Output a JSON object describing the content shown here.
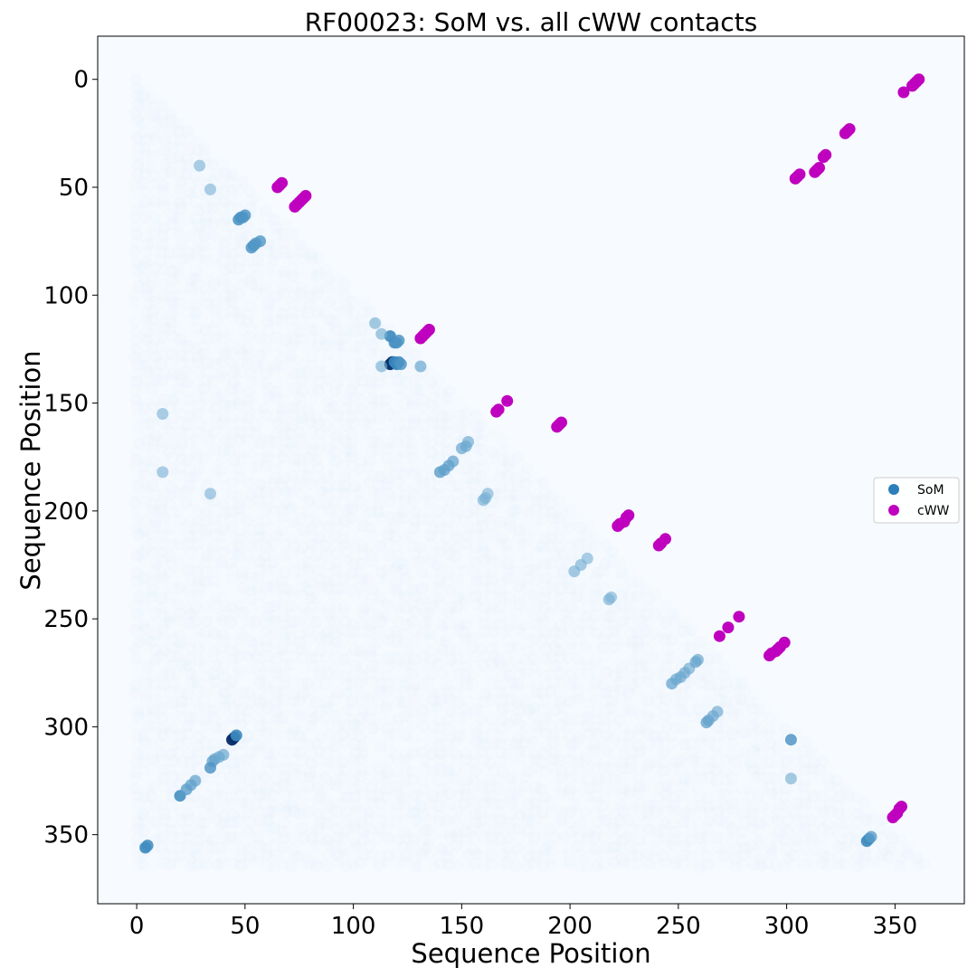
{
  "chart_data": {
    "type": "scatter",
    "title": "RF00023: SoM vs. all cWW contacts",
    "xlabel": "Sequence Position",
    "ylabel": "Sequence Position",
    "xlim": [
      -18,
      382
    ],
    "ylim": [
      382,
      -20
    ],
    "y_inverted": true,
    "xticks": [
      0,
      50,
      100,
      150,
      200,
      250,
      300,
      350
    ],
    "yticks": [
      0,
      50,
      100,
      150,
      200,
      250,
      300,
      350
    ],
    "grid": false,
    "legend_position": "center-right",
    "background_color": "#f7fbff",
    "colors": {
      "SoM": "#2c7fb8",
      "cWW": "#bf00bf"
    },
    "background_field": {
      "description": "dense lower-triangle field of faint SoM scores",
      "extent": [
        0,
        364
      ],
      "color": "#deebf7"
    },
    "series": [
      {
        "name": "SoM",
        "color": "#2c7fb8",
        "points": [
          [
            47,
            65,
            0.75
          ],
          [
            48,
            64,
            0.75
          ],
          [
            49,
            64,
            0.7
          ],
          [
            50,
            63,
            0.7
          ],
          [
            53,
            78,
            0.7
          ],
          [
            54,
            77,
            0.7
          ],
          [
            55,
            76,
            0.65
          ],
          [
            57,
            75,
            0.65
          ],
          [
            117,
            119,
            0.85
          ],
          [
            119,
            122,
            0.8
          ],
          [
            120,
            122,
            0.75
          ],
          [
            121,
            121,
            0.7
          ],
          [
            117,
            132,
            0.95
          ],
          [
            118,
            131,
            0.95
          ],
          [
            119,
            131,
            0.9
          ],
          [
            120,
            132,
            0.9
          ],
          [
            121,
            131,
            0.8
          ],
          [
            122,
            132,
            0.7
          ],
          [
            110,
            113,
            0.35
          ],
          [
            113,
            118,
            0.35
          ],
          [
            140,
            182,
            0.6
          ],
          [
            142,
            181,
            0.55
          ],
          [
            144,
            179,
            0.55
          ],
          [
            146,
            177,
            0.5
          ],
          [
            150,
            171,
            0.45
          ],
          [
            152,
            170,
            0.45
          ],
          [
            153,
            168,
            0.4
          ],
          [
            160,
            195,
            0.35
          ],
          [
            161,
            194,
            0.35
          ],
          [
            162,
            192,
            0.3
          ],
          [
            202,
            228,
            0.35
          ],
          [
            205,
            225,
            0.35
          ],
          [
            208,
            222,
            0.3
          ],
          [
            218,
            241,
            0.35
          ],
          [
            219,
            240,
            0.3
          ],
          [
            247,
            280,
            0.5
          ],
          [
            249,
            278,
            0.45
          ],
          [
            251,
            277,
            0.45
          ],
          [
            253,
            275,
            0.45
          ],
          [
            255,
            273,
            0.4
          ],
          [
            258,
            270,
            0.5
          ],
          [
            259,
            269,
            0.45
          ],
          [
            263,
            298,
            0.55
          ],
          [
            264,
            297,
            0.5
          ],
          [
            266,
            295,
            0.45
          ],
          [
            268,
            293,
            0.4
          ],
          [
            302,
            306,
            0.7
          ],
          [
            44,
            306,
            0.95
          ],
          [
            45,
            305,
            0.95
          ],
          [
            46,
            304,
            0.85
          ],
          [
            35,
            316,
            0.5
          ],
          [
            36,
            315,
            0.5
          ],
          [
            38,
            314,
            0.45
          ],
          [
            40,
            313,
            0.45
          ],
          [
            34,
            319,
            0.7
          ],
          [
            20,
            332,
            0.8
          ],
          [
            23,
            329,
            0.6
          ],
          [
            25,
            327,
            0.55
          ],
          [
            27,
            325,
            0.5
          ],
          [
            4,
            356,
            0.85
          ],
          [
            5,
            355,
            0.8
          ],
          [
            337,
            353,
            0.85
          ],
          [
            338,
            352,
            0.8
          ],
          [
            339,
            351,
            0.6
          ],
          [
            29,
            40,
            0.3
          ],
          [
            34,
            51,
            0.3
          ],
          [
            113,
            133,
            0.35
          ],
          [
            131,
            133,
            0.45
          ],
          [
            12,
            182,
            0.3
          ],
          [
            12,
            155,
            0.3
          ],
          [
            34,
            192,
            0.3
          ],
          [
            302,
            324,
            0.35
          ]
        ]
      },
      {
        "name": "cWW",
        "color": "#bf00bf",
        "points": [
          [
            65,
            50
          ],
          [
            66,
            49
          ],
          [
            67,
            48
          ],
          [
            73,
            59
          ],
          [
            74,
            58
          ],
          [
            75,
            57
          ],
          [
            76,
            56
          ],
          [
            77,
            55
          ],
          [
            78,
            54
          ],
          [
            131,
            120
          ],
          [
            132,
            119
          ],
          [
            133,
            118
          ],
          [
            134,
            117
          ],
          [
            135,
            116
          ],
          [
            166,
            154
          ],
          [
            167,
            153
          ],
          [
            171,
            149
          ],
          [
            194,
            161
          ],
          [
            195,
            160
          ],
          [
            196,
            159
          ],
          [
            222,
            207
          ],
          [
            223,
            206
          ],
          [
            225,
            205
          ],
          [
            226,
            203
          ],
          [
            227,
            202
          ],
          [
            241,
            216
          ],
          [
            242,
            215
          ],
          [
            244,
            213
          ],
          [
            269,
            258
          ],
          [
            273,
            254
          ],
          [
            278,
            249
          ],
          [
            292,
            267
          ],
          [
            293,
            266
          ],
          [
            295,
            265
          ],
          [
            296,
            264
          ],
          [
            297,
            263
          ],
          [
            299,
            261
          ],
          [
            304,
            46
          ],
          [
            305,
            45
          ],
          [
            306,
            44
          ],
          [
            313,
            43
          ],
          [
            314,
            42
          ],
          [
            315,
            41
          ],
          [
            317,
            36
          ],
          [
            318,
            35
          ],
          [
            327,
            25
          ],
          [
            328,
            24
          ],
          [
            329,
            23
          ],
          [
            349,
            342
          ],
          [
            350,
            341
          ],
          [
            351,
            340
          ],
          [
            352,
            338
          ],
          [
            353,
            337
          ],
          [
            354,
            6
          ],
          [
            358,
            3
          ],
          [
            359,
            2
          ],
          [
            360,
            1
          ],
          [
            361,
            0
          ]
        ]
      }
    ]
  }
}
